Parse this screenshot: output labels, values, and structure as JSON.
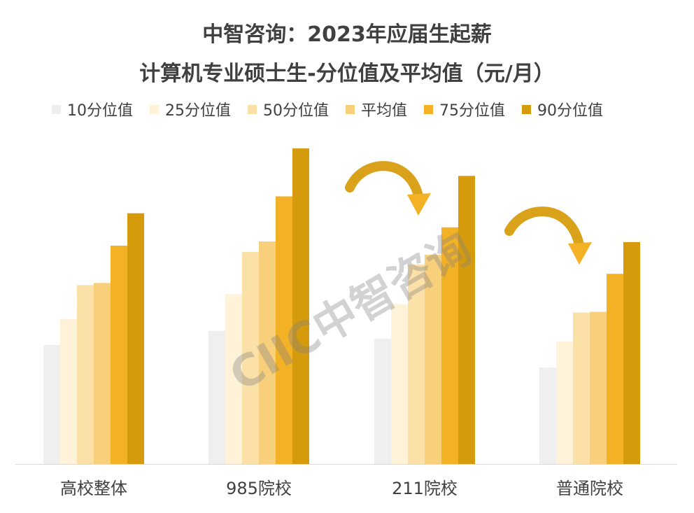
{
  "chart_data": {
    "type": "bar",
    "title_line1": "中智咨询：2023年应届生起薪",
    "title_line2": "计算机专业硕士生-分位值及平均值（元/月）",
    "categories": [
      "高校整体",
      "985院校",
      "211院校",
      "普通院校"
    ],
    "series": [
      {
        "name": "10分位值",
        "color": "#efefef",
        "values": [
          169,
          189,
          178,
          137
        ]
      },
      {
        "name": "25分位值",
        "color": "#fef3d8",
        "values": [
          206,
          241,
          227,
          174
        ]
      },
      {
        "name": "50分位值",
        "color": "#fbe1a8",
        "values": [
          254,
          301,
          283,
          215
        ]
      },
      {
        "name": "平均值",
        "color": "#f8d07c",
        "values": [
          257,
          316,
          297,
          216
        ]
      },
      {
        "name": "75分位值",
        "color": "#f3b126",
        "values": [
          310,
          380,
          336,
          270
        ]
      },
      {
        "name": "90分位值",
        "color": "#d59b0d",
        "values": [
          356,
          448,
          409,
          315
        ]
      }
    ],
    "ylim": [
      0,
      460
    ],
    "grid": false,
    "legend_position": "top",
    "watermark": "CIIC中智咨询"
  }
}
